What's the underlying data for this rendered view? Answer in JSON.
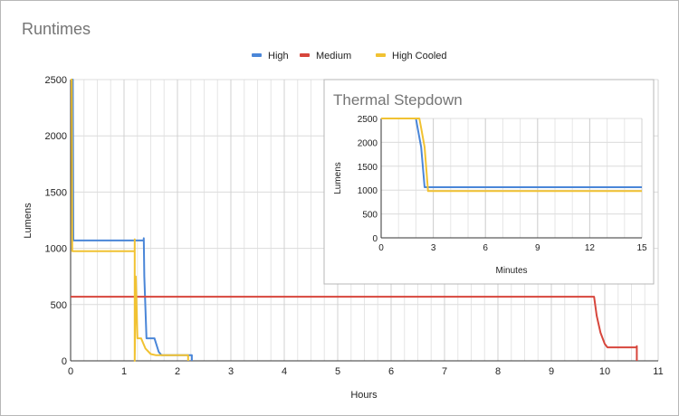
{
  "chart_data": [
    {
      "type": "line",
      "title": "Runtimes",
      "xlabel": "Hours",
      "ylabel": "Lumens",
      "xlim": [
        0,
        11
      ],
      "ylim": [
        0,
        2500
      ],
      "xticks": [
        "0",
        "1",
        "2",
        "3",
        "4",
        "5",
        "6",
        "7",
        "8",
        "9",
        "10",
        "11"
      ],
      "yticks": [
        "0",
        "500",
        "1000",
        "1500",
        "2000",
        "2500"
      ],
      "grid": true,
      "legend": {
        "placement": "top-center",
        "entries": [
          "High",
          "Medium",
          "High Cooled"
        ]
      },
      "series": [
        {
          "name": "High",
          "color": "#4a86d8",
          "points": [
            [
              0,
              2500
            ],
            [
              0.04,
              2500
            ],
            [
              0.05,
              1070
            ],
            [
              1.37,
              1070
            ],
            [
              1.37,
              1090
            ],
            [
              1.38,
              750
            ],
            [
              1.42,
              200
            ],
            [
              1.57,
              200
            ],
            [
              1.65,
              80
            ],
            [
              1.7,
              50
            ],
            [
              2.27,
              50
            ],
            [
              2.27,
              0
            ]
          ]
        },
        {
          "name": "Medium",
          "color": "#d7463c",
          "points": [
            [
              0,
              570
            ],
            [
              9.8,
              570
            ],
            [
              9.85,
              400
            ],
            [
              9.92,
              250
            ],
            [
              10.0,
              150
            ],
            [
              10.05,
              120
            ],
            [
              10.6,
              120
            ],
            [
              10.6,
              130
            ],
            [
              10.6,
              0
            ]
          ]
        },
        {
          "name": "High Cooled",
          "color": "#f1c232",
          "points": [
            [
              0,
              2500
            ],
            [
              0.02,
              2500
            ],
            [
              0.03,
              975
            ],
            [
              1.2,
              975
            ],
            [
              1.2,
              1080
            ],
            [
              1.2,
              0
            ],
            [
              1.22,
              750
            ],
            [
              1.25,
              200
            ],
            [
              1.32,
              200
            ],
            [
              1.4,
              110
            ],
            [
              1.5,
              60
            ],
            [
              1.6,
              50
            ],
            [
              2.2,
              50
            ],
            [
              2.2,
              0
            ]
          ]
        }
      ]
    },
    {
      "type": "line",
      "title": "Thermal Stepdown",
      "xlabel": "Minutes",
      "ylabel": "Lumens",
      "xlim": [
        0,
        15
      ],
      "ylim": [
        0,
        2500
      ],
      "xticks": [
        "0",
        "3",
        "6",
        "9",
        "12",
        "15"
      ],
      "yticks": [
        "0",
        "500",
        "1000",
        "1500",
        "2000",
        "2500"
      ],
      "grid": true,
      "series": [
        {
          "name": "High",
          "color": "#4a86d8",
          "points": [
            [
              0,
              2500
            ],
            [
              2.0,
              2500
            ],
            [
              2.1,
              2300
            ],
            [
              2.3,
              1900
            ],
            [
              2.5,
              1060
            ],
            [
              15,
              1060
            ]
          ]
        },
        {
          "name": "High Cooled",
          "color": "#f1c232",
          "points": [
            [
              0,
              2500
            ],
            [
              2.2,
              2500
            ],
            [
              2.3,
              2300
            ],
            [
              2.5,
              1900
            ],
            [
              2.7,
              980
            ],
            [
              15,
              980
            ]
          ]
        }
      ]
    }
  ]
}
